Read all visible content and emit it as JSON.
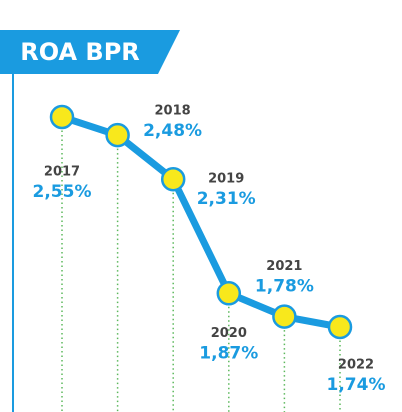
{
  "chart_data": {
    "type": "line",
    "title": "ROA BPR",
    "categories": [
      "2017",
      "2018",
      "2019",
      "2020",
      "2021",
      "2022"
    ],
    "values": [
      2.55,
      2.48,
      2.31,
      1.87,
      1.78,
      1.74
    ],
    "value_labels": [
      "2,55%",
      "2,48%",
      "2,31%",
      "1,87%",
      "1,78%",
      "1,74%"
    ],
    "color": "#1a9be0",
    "marker_color": "#f8e81c"
  }
}
